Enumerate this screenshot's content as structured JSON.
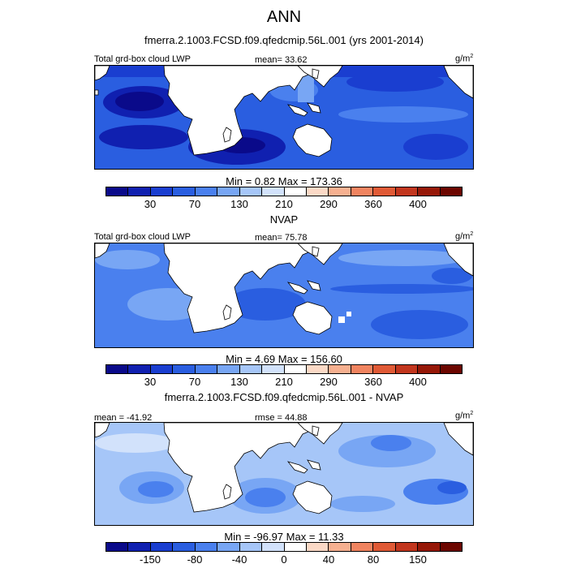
{
  "title": "ANN",
  "panels": [
    {
      "heading": "fmerra.2.1003.FCSD.f09.qfedcmip.56L.001 (yrs 2001-2014)",
      "left_label": "Total grd-box cloud LWP",
      "center_label": "mean=  33.62",
      "units": "g/m",
      "units_exp": "2",
      "minmax": "Min =   0.82 Max = 173.36",
      "ticks": [
        "30",
        "70",
        "130",
        "210",
        "290",
        "360",
        "400"
      ]
    },
    {
      "heading": "NVAP",
      "left_label": "Total grd-box cloud LWP",
      "center_label": "mean=  75.78",
      "units": "g/m",
      "units_exp": "2",
      "minmax": "Min =   4.69 Max = 156.60",
      "ticks": [
        "30",
        "70",
        "130",
        "210",
        "290",
        "360",
        "400"
      ]
    },
    {
      "heading": "fmerra.2.1003.FCSD.f09.qfedcmip.56L.001 - NVAP",
      "left_label": "mean = -41.92",
      "center_label": "rmse =  44.88",
      "units": "g/m",
      "units_exp": "2",
      "minmax": "Min = -96.97 Max =  11.33",
      "ticks": [
        "-150",
        "-80",
        "-40",
        "0",
        "40",
        "80",
        "150"
      ]
    }
  ],
  "colors": {
    "scale": [
      "#0a0a8a",
      "#1020b0",
      "#1a3ed0",
      "#2a5ee0",
      "#4a80ee",
      "#78a6f4",
      "#a6c6f8",
      "#d2e2fb",
      "#ffffff",
      "#fbd9c6",
      "#f6b090",
      "#f08460",
      "#e05a36",
      "#c2361e",
      "#961808",
      "#6c0600"
    ],
    "land": "#ffffff",
    "coast": "#000000"
  }
}
